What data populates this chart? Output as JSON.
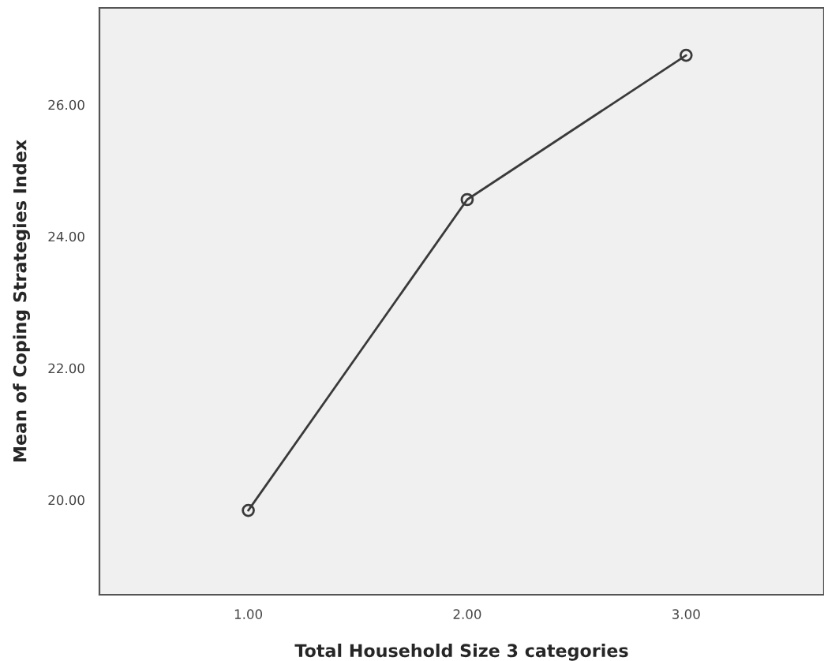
{
  "chart_data": {
    "type": "line",
    "xlabel": "Total Household Size 3 categories",
    "ylabel": "Mean of Coping Strategies Index",
    "categories": [
      "1.00",
      "2.00",
      "3.00"
    ],
    "series": [
      {
        "color": "#3a3a3a",
        "values": [
          19.84,
          24.56,
          26.75
        ]
      }
    ],
    "ylim": [
      18.56,
      27.47
    ],
    "yticks": [
      {
        "value": 20,
        "label": "20.00"
      },
      {
        "value": 22,
        "label": "22.00"
      },
      {
        "value": 24,
        "label": "24.00"
      },
      {
        "value": 26,
        "label": "26.00"
      }
    ],
    "marker": "circle",
    "line_style": "solid",
    "grid": false
  }
}
